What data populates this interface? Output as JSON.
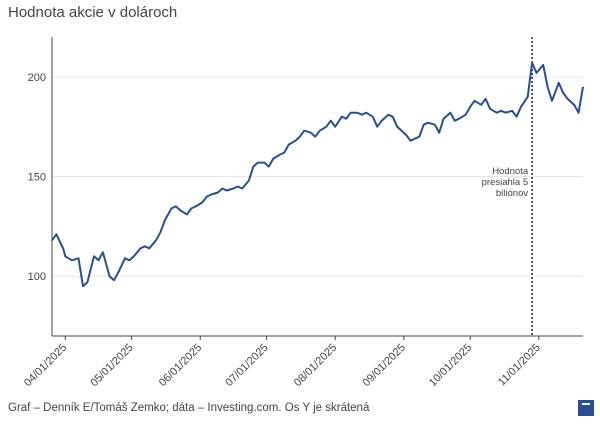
{
  "title": "Hodnota akcie v dolároch",
  "footer": "Graf – Denník E/Tomáš Zemko; dáta – Investing.com. Os Y je skrátená",
  "logo": {
    "icon": "denník-e-logo",
    "color": "#2b4f8c"
  },
  "chart_data": {
    "type": "line",
    "title": "Hodnota akcie v dolároch",
    "xlabel": "",
    "ylabel": "",
    "xlim": [
      "2025-03-26",
      "2025-11-21"
    ],
    "ylim": [
      70,
      220
    ],
    "y_ticks": [
      100,
      150,
      200
    ],
    "x_ticks": [
      "04/01/2025",
      "05/01/2025",
      "06/01/2025",
      "07/01/2025",
      "08/01/2025",
      "09/01/2025",
      "10/01/2025",
      "11/01/2025"
    ],
    "grid": true,
    "line_color": "#2b4f8c",
    "annotation": {
      "date": "2025-10-29",
      "text": [
        "Hodnota",
        "presiahla 5",
        "biliónov"
      ]
    },
    "series": [
      {
        "name": "",
        "points": [
          [
            "2025-03-26",
            118
          ],
          [
            "2025-03-28",
            121
          ],
          [
            "2025-03-31",
            114
          ],
          [
            "2025-04-01",
            110
          ],
          [
            "2025-04-04",
            108
          ],
          [
            "2025-04-07",
            109
          ],
          [
            "2025-04-09",
            95
          ],
          [
            "2025-04-11",
            97
          ],
          [
            "2025-04-14",
            110
          ],
          [
            "2025-04-16",
            108
          ],
          [
            "2025-04-18",
            112
          ],
          [
            "2025-04-21",
            100
          ],
          [
            "2025-04-23",
            98
          ],
          [
            "2025-04-25",
            102
          ],
          [
            "2025-04-28",
            109
          ],
          [
            "2025-04-30",
            108
          ],
          [
            "2025-05-02",
            110
          ],
          [
            "2025-05-05",
            114
          ],
          [
            "2025-05-07",
            115
          ],
          [
            "2025-05-09",
            114
          ],
          [
            "2025-05-12",
            118
          ],
          [
            "2025-05-14",
            122
          ],
          [
            "2025-05-16",
            128
          ],
          [
            "2025-05-19",
            134
          ],
          [
            "2025-05-21",
            135
          ],
          [
            "2025-05-23",
            133
          ],
          [
            "2025-05-26",
            131
          ],
          [
            "2025-05-28",
            134
          ],
          [
            "2025-05-30",
            135
          ],
          [
            "2025-06-02",
            137
          ],
          [
            "2025-06-04",
            140
          ],
          [
            "2025-06-06",
            141
          ],
          [
            "2025-06-09",
            142
          ],
          [
            "2025-06-11",
            144
          ],
          [
            "2025-06-13",
            143
          ],
          [
            "2025-06-16",
            144
          ],
          [
            "2025-06-18",
            145
          ],
          [
            "2025-06-20",
            144
          ],
          [
            "2025-06-23",
            148
          ],
          [
            "2025-06-25",
            155
          ],
          [
            "2025-06-27",
            157
          ],
          [
            "2025-06-30",
            157
          ],
          [
            "2025-07-02",
            155
          ],
          [
            "2025-07-04",
            159
          ],
          [
            "2025-07-07",
            161
          ],
          [
            "2025-07-09",
            162
          ],
          [
            "2025-07-11",
            166
          ],
          [
            "2025-07-14",
            168
          ],
          [
            "2025-07-16",
            170
          ],
          [
            "2025-07-18",
            173
          ],
          [
            "2025-07-21",
            172
          ],
          [
            "2025-07-23",
            170
          ],
          [
            "2025-07-25",
            173
          ],
          [
            "2025-07-28",
            175
          ],
          [
            "2025-07-30",
            178
          ],
          [
            "2025-08-01",
            175
          ],
          [
            "2025-08-04",
            180
          ],
          [
            "2025-08-06",
            179
          ],
          [
            "2025-08-08",
            182
          ],
          [
            "2025-08-11",
            182
          ],
          [
            "2025-08-13",
            181
          ],
          [
            "2025-08-15",
            182
          ],
          [
            "2025-08-18",
            180
          ],
          [
            "2025-08-20",
            175
          ],
          [
            "2025-08-22",
            178
          ],
          [
            "2025-08-25",
            181
          ],
          [
            "2025-08-27",
            180
          ],
          [
            "2025-08-29",
            175
          ],
          [
            "2025-09-02",
            171
          ],
          [
            "2025-09-04",
            168
          ],
          [
            "2025-09-08",
            170
          ],
          [
            "2025-09-10",
            176
          ],
          [
            "2025-09-12",
            177
          ],
          [
            "2025-09-15",
            176
          ],
          [
            "2025-09-17",
            172
          ],
          [
            "2025-09-19",
            179
          ],
          [
            "2025-09-22",
            182
          ],
          [
            "2025-09-24",
            178
          ],
          [
            "2025-09-26",
            179
          ],
          [
            "2025-09-29",
            181
          ],
          [
            "2025-10-01",
            185
          ],
          [
            "2025-10-03",
            188
          ],
          [
            "2025-10-06",
            186
          ],
          [
            "2025-10-08",
            189
          ],
          [
            "2025-10-10",
            184
          ],
          [
            "2025-10-13",
            182
          ],
          [
            "2025-10-15",
            183
          ],
          [
            "2025-10-17",
            182
          ],
          [
            "2025-10-20",
            183
          ],
          [
            "2025-10-22",
            180
          ],
          [
            "2025-10-24",
            185
          ],
          [
            "2025-10-27",
            190
          ],
          [
            "2025-10-29",
            207
          ],
          [
            "2025-10-31",
            202
          ],
          [
            "2025-11-03",
            206
          ],
          [
            "2025-11-05",
            195
          ],
          [
            "2025-11-07",
            188
          ],
          [
            "2025-11-10",
            197
          ],
          [
            "2025-11-12",
            192
          ],
          [
            "2025-11-14",
            189
          ],
          [
            "2025-11-17",
            186
          ],
          [
            "2025-11-19",
            182
          ],
          [
            "2025-11-21",
            195
          ]
        ]
      }
    ]
  }
}
